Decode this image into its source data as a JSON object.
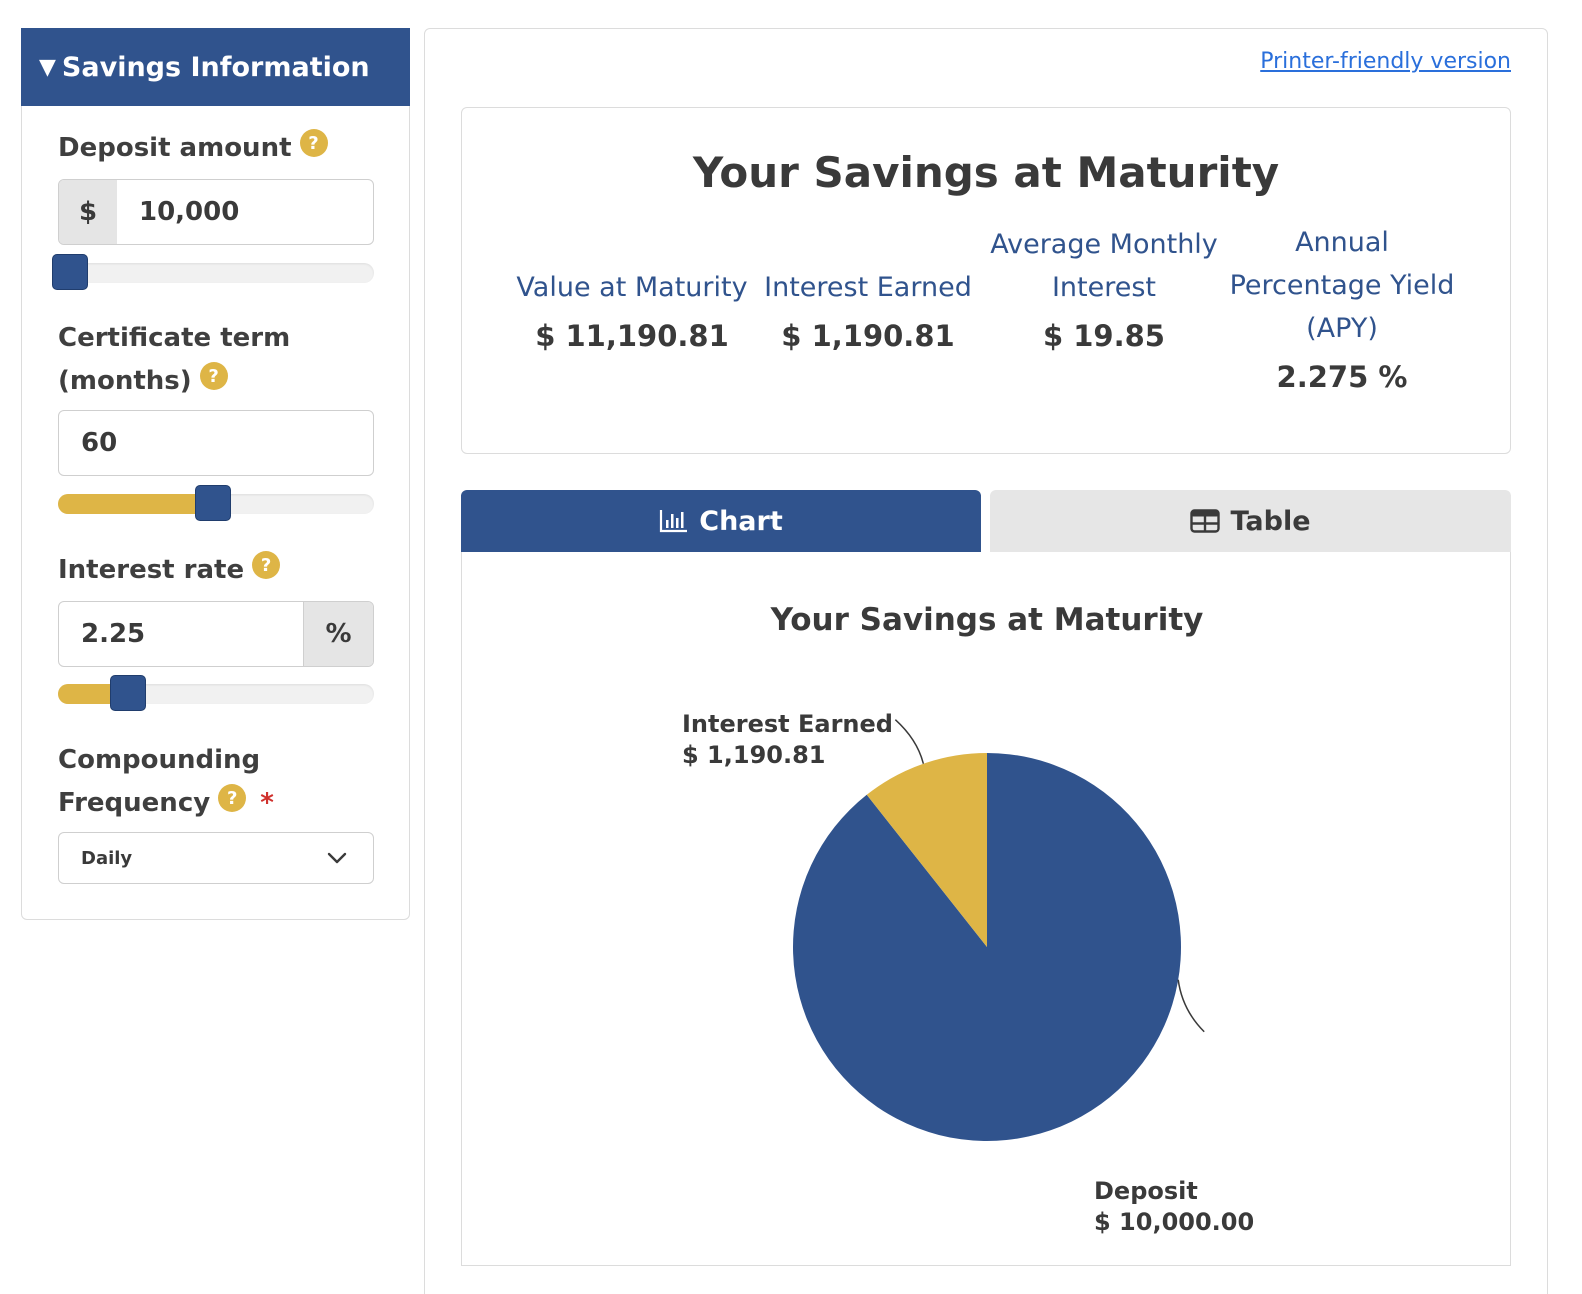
{
  "sidebar": {
    "header": "Savings Information",
    "deposit": {
      "label": "Deposit amount",
      "prefix": "$",
      "value": "10,000",
      "slider_fraction": 0.0
    },
    "term": {
      "label_line1": "Certificate term",
      "label_line2": "(months)",
      "value": "60",
      "slider_fraction": 0.49
    },
    "rate": {
      "label": "Interest rate",
      "suffix": "%",
      "value": "2.25",
      "slider_fraction": 0.22
    },
    "compounding": {
      "label_line1": "Compounding",
      "label_line2": "Frequency",
      "required_mark": "*",
      "selected": "Daily"
    },
    "help_glyph": "?"
  },
  "main": {
    "print_link": "Printer-friendly version",
    "summary": {
      "title": "Your Savings at Maturity",
      "metrics": [
        {
          "label_lines": [
            "Value at Maturity"
          ],
          "value": "$ 11,190.81"
        },
        {
          "label_lines": [
            "Interest Earned"
          ],
          "value": "$ 1,190.81"
        },
        {
          "label_lines": [
            "Average Monthly",
            "Interest"
          ],
          "value": "$ 19.85"
        },
        {
          "label_lines": [
            "Annual",
            "Percentage Yield",
            "(APY)"
          ],
          "value": "2.275 %"
        }
      ]
    },
    "tabs": [
      {
        "label": "Chart",
        "icon": "bar-chart-icon",
        "active": true
      },
      {
        "label": "Table",
        "icon": "table-icon",
        "active": false
      }
    ]
  },
  "colors": {
    "brand_blue": "#30538d",
    "accent_gold": "#deb546",
    "link_blue": "#2a6fdb"
  },
  "chart_data": {
    "type": "pie",
    "title": "Your Savings at Maturity",
    "slices": [
      {
        "name": "Deposit",
        "value": 10000.0,
        "label": "$ 10,000.00",
        "color": "#30538d"
      },
      {
        "name": "Interest Earned",
        "value": 1190.81,
        "label": "$ 1,190.81",
        "color": "#deb546"
      }
    ]
  }
}
